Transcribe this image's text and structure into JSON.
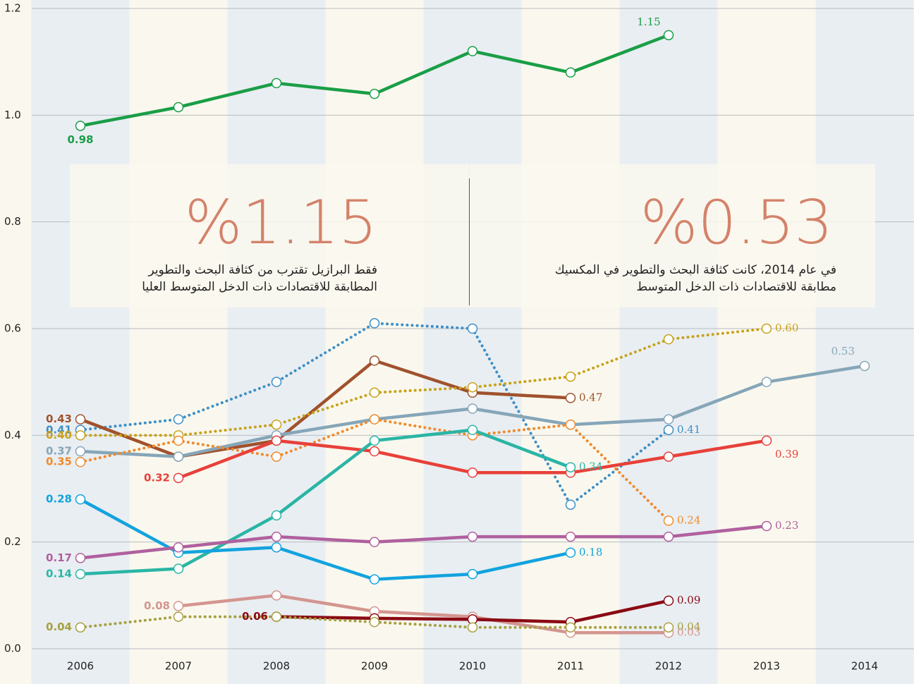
{
  "chart_data": {
    "type": "line",
    "categories": [
      "2006",
      "2007",
      "2008",
      "2009",
      "2010",
      "2011",
      "2012",
      "2013",
      "2014"
    ],
    "ylim": [
      0,
      1.2
    ],
    "yticks": [
      {
        "value": 0,
        "label": "0.0"
      },
      0.2,
      0.4,
      0.6,
      0.8,
      {
        "value": 1,
        "label": "1.0"
      },
      1.2
    ],
    "grid": true,
    "band_colors": [
      "#e9eef2",
      "#faf8ee"
    ],
    "series": [
      {
        "color": "#1a9e47",
        "style": "solid",
        "values": [
          0.98,
          1.015,
          1.06,
          1.04,
          1.12,
          1.08,
          1.15,
          null,
          null
        ],
        "value_labels": [
          "0.98",
          null,
          null,
          null,
          null,
          null,
          "1.15",
          null,
          null
        ]
      },
      {
        "color": "#3d8fc6",
        "style": "dotted",
        "values": [
          0.41,
          0.43,
          0.5,
          0.61,
          0.6,
          0.27,
          0.41,
          null,
          null
        ],
        "value_labels": [
          "0.41",
          null,
          null,
          null,
          null,
          null,
          "0.41",
          null,
          null
        ]
      },
      {
        "color": "#a0522d",
        "style": "solid",
        "values": [
          0.43,
          0.36,
          0.39,
          0.54,
          0.48,
          0.47,
          null,
          null,
          null
        ],
        "value_labels": [
          "0.43",
          null,
          null,
          null,
          null,
          "0.47",
          null,
          null,
          null
        ]
      },
      {
        "color": "#c8a21a",
        "style": "dotted",
        "values": [
          0.4,
          0.4,
          0.42,
          0.48,
          0.49,
          0.51,
          0.58,
          0.6,
          null
        ],
        "value_labels": [
          "0.40",
          null,
          null,
          null,
          null,
          null,
          null,
          "0.60",
          null
        ]
      },
      {
        "color": "#86a6b8",
        "style": "solid",
        "values": [
          0.37,
          0.36,
          0.4,
          0.43,
          0.45,
          0.42,
          0.43,
          0.5,
          0.53
        ],
        "value_labels": [
          "0.37",
          null,
          null,
          null,
          null,
          null,
          null,
          null,
          "0.53"
        ]
      },
      {
        "color": "#f08a2c",
        "style": "dotted",
        "values": [
          0.35,
          0.39,
          0.36,
          0.43,
          0.4,
          0.42,
          0.24,
          null,
          null
        ],
        "value_labels": [
          "0.35",
          null,
          null,
          null,
          null,
          null,
          "0.24",
          null,
          null
        ]
      },
      {
        "color": "#e8403a",
        "style": "solid",
        "values": [
          null,
          0.32,
          0.39,
          0.37,
          0.33,
          0.33,
          0.36,
          0.39,
          null
        ],
        "value_labels": [
          null,
          "0.32",
          null,
          null,
          null,
          null,
          null,
          "0.39",
          null
        ]
      },
      {
        "color": "#2ab5a5",
        "style": "solid",
        "values": [
          0.14,
          0.15,
          0.25,
          0.39,
          0.41,
          0.34,
          null,
          null,
          null
        ],
        "value_labels": [
          "0.14",
          null,
          null,
          null,
          null,
          "0.34",
          null,
          null,
          null
        ]
      },
      {
        "color": "#12a3de",
        "style": "solid",
        "values": [
          0.28,
          0.18,
          0.19,
          0.13,
          0.14,
          0.18,
          null,
          null,
          null
        ],
        "value_labels": [
          "0.28",
          null,
          null,
          null,
          null,
          "0.18",
          null,
          null,
          null
        ]
      },
      {
        "color": "#b0609e",
        "style": "solid",
        "values": [
          0.17,
          0.19,
          0.21,
          0.2,
          0.21,
          0.21,
          0.21,
          0.23,
          null
        ],
        "value_labels": [
          "0.17",
          null,
          null,
          null,
          null,
          null,
          null,
          "0.23",
          null
        ]
      },
      {
        "color": "#d49590",
        "style": "solid",
        "values": [
          null,
          0.08,
          0.1,
          0.07,
          0.06,
          0.03,
          0.03,
          null,
          null
        ],
        "value_labels": [
          null,
          "0.08",
          null,
          null,
          null,
          null,
          "0.03",
          null,
          null
        ]
      },
      {
        "color": "#8b0a14",
        "style": "solid",
        "values": [
          null,
          null,
          0.06,
          0.057,
          0.055,
          0.05,
          0.09,
          null,
          null
        ],
        "value_labels": [
          null,
          null,
          "0.06",
          null,
          null,
          null,
          "0.09",
          null,
          null
        ]
      },
      {
        "color": "#a6a040",
        "style": "dotted",
        "values": [
          0.04,
          0.06,
          0.06,
          0.05,
          0.04,
          0.04,
          0.04,
          null,
          null
        ],
        "value_labels": [
          "0.04",
          null,
          null,
          null,
          null,
          null,
          "0.04",
          null,
          null
        ]
      }
    ],
    "annotations": [
      {
        "headline": "%1.15",
        "lines": [
          "فقط البرازيل تقترب من كثافة البحث والتطوير",
          "المطابقة للاقتصادات ذات الدخل المتوسط العليا"
        ]
      },
      {
        "headline": "%0.53",
        "lines": [
          "في عام 2014، كانت كثافة البحث والتطوير في المكسيك",
          "مطابقة للاقتصادات ذات الدخل المتوسط"
        ]
      }
    ]
  }
}
